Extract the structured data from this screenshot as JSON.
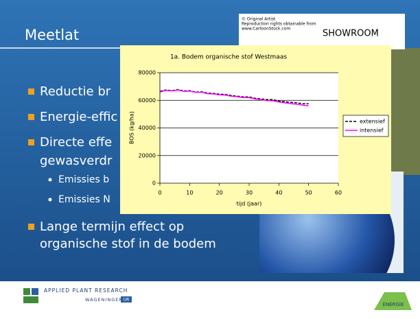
{
  "slide": {
    "title": "Meetlat",
    "bullets": [
      "Reductie br",
      "Energie-effic",
      "Directe effe",
      "gewasverdr",
      "Lange termijn effect op",
      "organische stof in de bodem"
    ],
    "sub_bullets": [
      "Emissies b",
      "Emissies N"
    ],
    "cartoon": [
      "© Original Artist",
      "Reproduction rights obtainable from",
      "www.CartoonStock.com",
      "SHOWROOM"
    ],
    "footer": {
      "left": "APPLIED PLANT RESEARCH",
      "left_sub": "WAGENINGEN",
      "left_badge": "UR",
      "right": "ENERGIE"
    }
  },
  "chart_data": {
    "type": "line",
    "title": "1a. Bodem organische stof Westmaas",
    "x_label": "tijd (jaar)",
    "y_label": "BOS (kg/ha)",
    "x": [
      0,
      2,
      4,
      6,
      8,
      10,
      12,
      14,
      16,
      18,
      20,
      22,
      24,
      26,
      28,
      30,
      32,
      34,
      36,
      38,
      40,
      42,
      44,
      46,
      48,
      50
    ],
    "series": [
      {
        "name": "extensief",
        "color": "#000000",
        "style": "dashed",
        "values": [
          66500,
          67500,
          67000,
          67800,
          66800,
          67000,
          66000,
          66200,
          65200,
          65000,
          64500,
          64200,
          63500,
          63000,
          62500,
          62500,
          61500,
          61000,
          60500,
          60500,
          59500,
          59000,
          58500,
          58200,
          57500,
          57500
        ]
      },
      {
        "name": "intensief",
        "color": "#ff00ff",
        "style": "solid",
        "values": [
          66000,
          67200,
          66800,
          67500,
          66500,
          66700,
          65800,
          65900,
          64800,
          64600,
          64000,
          63800,
          63000,
          62600,
          62000,
          62000,
          61000,
          60500,
          59800,
          59700,
          58800,
          58200,
          57600,
          57200,
          56500,
          56000
        ]
      }
    ],
    "xlim": [
      0,
      60
    ],
    "xticks": [
      0,
      10,
      20,
      30,
      40,
      50,
      60
    ],
    "ylim": [
      0,
      80000
    ],
    "yticks": [
      0,
      20000,
      40000,
      60000,
      80000
    ],
    "grid": true,
    "legend": "right"
  }
}
